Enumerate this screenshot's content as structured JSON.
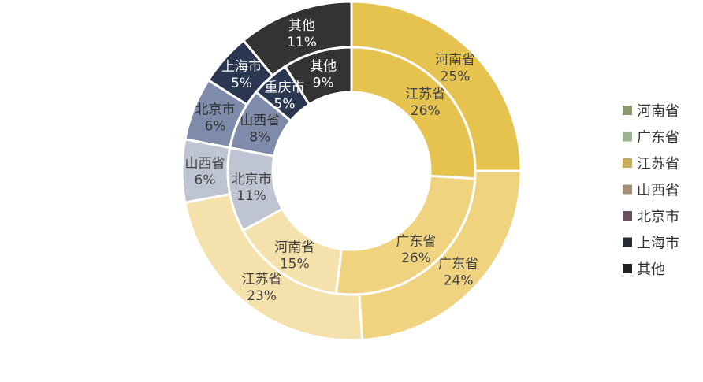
{
  "chart_data": {
    "type": "donut",
    "title": "",
    "legend_position": "right",
    "legend": [
      {
        "label": "河南省",
        "color": "#8a9a6a"
      },
      {
        "label": "广东省",
        "color": "#9cb48e"
      },
      {
        "label": "江苏省",
        "color": "#c7ad55"
      },
      {
        "label": "山西省",
        "color": "#a58f78"
      },
      {
        "label": "北京市",
        "color": "#6b5160"
      },
      {
        "label": "上海市",
        "color": "#262a33"
      },
      {
        "label": "其他",
        "color": "#222222"
      }
    ],
    "series": [
      {
        "ring": "outer",
        "slices": [
          {
            "label": "河南省",
            "value": 25,
            "text": "25%",
            "color": "#e6c24f",
            "text_color": "#444444"
          },
          {
            "label": "广东省",
            "value": 24,
            "text": "24%",
            "color": "#f0d37f",
            "text_color": "#444444"
          },
          {
            "label": "江苏省",
            "value": 23,
            "text": "23%",
            "color": "#f5e1ac",
            "text_color": "#444444"
          },
          {
            "label": "山西省",
            "value": 6,
            "text": "6%",
            "color": "#bfc4d2",
            "text_color": "#444444"
          },
          {
            "label": "北京市",
            "value": 6,
            "text": "6%",
            "color": "#7f8bab",
            "text_color": "#333333"
          },
          {
            "label": "上海市",
            "value": 5,
            "text": "5%",
            "color": "#2b3650",
            "text_color": "#ffffff"
          },
          {
            "label": "其他",
            "value": 11,
            "text": "11%",
            "color": "#333333",
            "text_color": "#ffffff"
          }
        ]
      },
      {
        "ring": "inner",
        "slices": [
          {
            "label": "江苏省",
            "value": 26,
            "text": "26%",
            "color": "#e6c24f",
            "text_color": "#444444"
          },
          {
            "label": "广东省",
            "value": 26,
            "text": "26%",
            "color": "#f0d37f",
            "text_color": "#444444"
          },
          {
            "label": "河南省",
            "value": 15,
            "text": "15%",
            "color": "#f5e1ac",
            "text_color": "#444444"
          },
          {
            "label": "北京市",
            "value": 11,
            "text": "11%",
            "color": "#bfc4d2",
            "text_color": "#444444"
          },
          {
            "label": "山西省",
            "value": 8,
            "text": "8%",
            "color": "#7f8bab",
            "text_color": "#333333"
          },
          {
            "label": "重庆市",
            "value": 5,
            "text": "5%",
            "color": "#2b3650",
            "text_color": "#ffffff"
          },
          {
            "label": "其他",
            "value": 9,
            "text": "9%",
            "color": "#333333",
            "text_color": "#ffffff"
          }
        ]
      }
    ]
  }
}
